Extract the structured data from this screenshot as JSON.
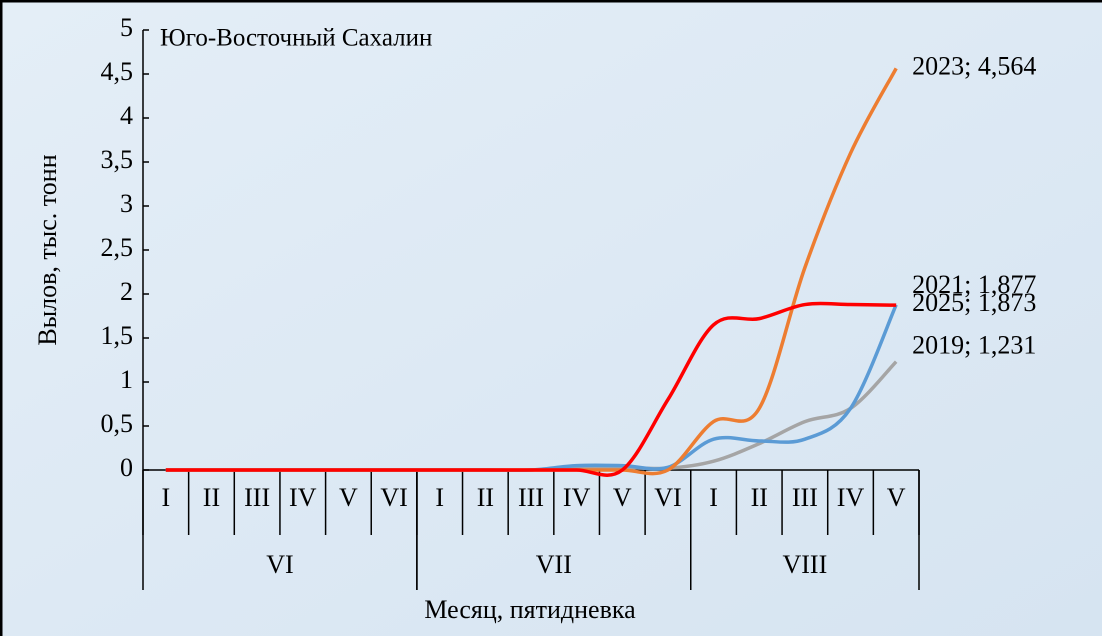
{
  "chart_data": {
    "type": "line",
    "title": "Юго-Восточный Сахалин",
    "x_label": "Месяц, пятидневка",
    "y_label": "Вылов, тыс. тонн",
    "categories": [
      "I",
      "II",
      "III",
      "IV",
      "V",
      "VI",
      "I",
      "II",
      "III",
      "IV",
      "V",
      "VI",
      "I",
      "II",
      "III",
      "IV",
      "V"
    ],
    "groups": [
      {
        "label": "VI",
        "count": 6
      },
      {
        "label": "VII",
        "count": 6
      },
      {
        "label": "VIII",
        "count": 5
      }
    ],
    "ylim": [
      0,
      5
    ],
    "yticks": [
      0,
      {
        "value": 0.5,
        "label": "0,5"
      },
      1,
      {
        "value": 1.5,
        "label": "1,5"
      },
      2,
      {
        "value": 2.5,
        "label": "2,5"
      },
      3,
      {
        "value": 3.5,
        "label": "3,5"
      },
      4,
      {
        "value": 4.5,
        "label": "4,5"
      },
      5
    ],
    "series": [
      {
        "color": "#a5a5a5",
        "values": [
          0,
          0,
          0,
          0,
          0,
          0,
          0,
          0,
          0,
          0.03,
          0.03,
          0.02,
          0.1,
          0.3,
          0.55,
          0.7,
          1.231
        ],
        "value_labels": [
          null,
          null,
          null,
          null,
          null,
          null,
          null,
          null,
          null,
          null,
          null,
          null,
          null,
          null,
          null,
          null,
          "2019; 1,231"
        ]
      },
      {
        "color": "#5b9bd5",
        "values": [
          0,
          0,
          0,
          0,
          0,
          0,
          0,
          0,
          0,
          0.05,
          0.05,
          0.03,
          0.35,
          0.33,
          0.35,
          0.7,
          1.877
        ],
        "value_labels": [
          null,
          null,
          null,
          null,
          null,
          null,
          null,
          null,
          null,
          null,
          null,
          null,
          null,
          null,
          null,
          null,
          "2021; 1,877"
        ]
      },
      {
        "color": "#ed7d31",
        "values": [
          0,
          0,
          0,
          0,
          0,
          0,
          0,
          0,
          0,
          0,
          0,
          0,
          0.55,
          0.7,
          2.3,
          3.6,
          4.564
        ],
        "value_labels": [
          null,
          null,
          null,
          null,
          null,
          null,
          null,
          null,
          null,
          null,
          null,
          null,
          null,
          null,
          null,
          null,
          "2023; 4,564"
        ]
      },
      {
        "color": "#ff0000",
        "values": [
          0,
          0,
          0,
          0,
          0,
          0,
          0,
          0,
          0,
          0,
          0,
          0.8,
          1.65,
          1.72,
          1.88,
          1.88,
          1.873
        ],
        "value_labels": [
          null,
          null,
          null,
          null,
          null,
          null,
          null,
          null,
          null,
          null,
          null,
          null,
          null,
          null,
          null,
          null,
          "2025; 1,873"
        ]
      }
    ]
  }
}
